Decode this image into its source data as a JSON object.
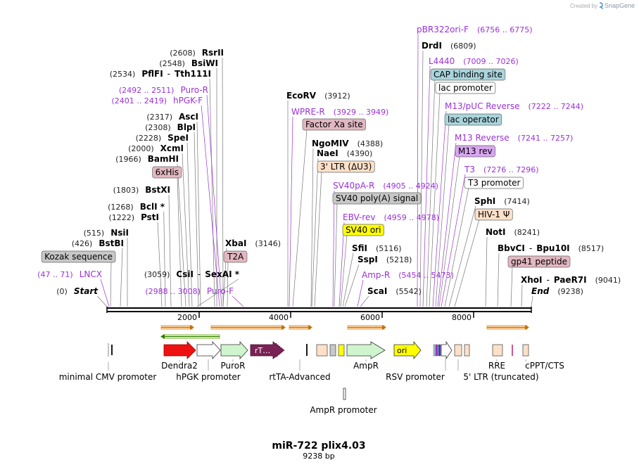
{
  "header": {
    "credit_prefix": "Created by",
    "credit_app": "SnapGene"
  },
  "colors": {
    "primer": "#9b30d9",
    "enzyme": "#000000",
    "pos": "#222222",
    "leader": "#777777",
    "gray_feature": "#c8c8c8",
    "pink_feature": "#e2b7c2",
    "peach_feature": "#fde0c8",
    "yellow_feature": "#ffff00",
    "blue_feature": "#a9d4dc",
    "white_feature": "#ffffff",
    "purple_feature": "#d9a6f0",
    "lavender_feature": "#d9c5ee"
  },
  "map": {
    "title": "miR-722 plix4.03",
    "length_label": "9238 bp",
    "ruler": [
      "2000",
      "4000",
      "6000",
      "8000"
    ]
  },
  "labels": [
    {
      "kind": "primer",
      "name": "pBR322ori-F",
      "pos": "(6756 .. 6775)"
    },
    {
      "kind": "enzyme",
      "name": "DrdI",
      "pos": "(6809)"
    },
    {
      "kind": "primer",
      "name": "L4440",
      "pos": "(7009 .. 7026)"
    },
    {
      "kind": "feature",
      "name": "CAP binding site",
      "color": "blue"
    },
    {
      "kind": "feature",
      "name": "lac promoter",
      "color": "white"
    },
    {
      "kind": "primer",
      "name": "M13/pUC Reverse",
      "pos": "(7222 .. 7244)"
    },
    {
      "kind": "feature",
      "name": "lac operator",
      "color": "blue"
    },
    {
      "kind": "primer",
      "name": "M13 Reverse",
      "pos": "(7241 .. 7257)"
    },
    {
      "kind": "feature",
      "name": "M13 rev",
      "color": "purple"
    },
    {
      "kind": "primer",
      "name": "T3",
      "pos": "(7276 .. 7296)"
    },
    {
      "kind": "feature",
      "name": "T3 promoter",
      "color": "white"
    },
    {
      "kind": "enzyme",
      "name": "SphI",
      "pos": "(7414)"
    },
    {
      "kind": "feature",
      "name": "HIV-1 Ψ",
      "color": "peach"
    },
    {
      "kind": "enzyme",
      "name": "NotI",
      "pos": "(8241)"
    },
    {
      "kind": "enzyme",
      "name": "BbvCI",
      "sep": "-",
      "name2": "Bpu10I",
      "pos": "(8517)"
    },
    {
      "kind": "feature",
      "name": "gp41 peptide",
      "color": "pink"
    },
    {
      "kind": "enzyme",
      "name": "XhoI",
      "sep": "-",
      "name2": "PaeR7I",
      "pos": "(9041)"
    },
    {
      "kind": "end",
      "name": "End",
      "pos": "(9238)"
    },
    {
      "kind": "enzyme",
      "name": "EcoRV",
      "pos": "(3912)"
    },
    {
      "kind": "primer",
      "name": "WPRE-R",
      "pos": "(3929 .. 3949)"
    },
    {
      "kind": "feature",
      "name": "Factor Xa site",
      "color": "pink"
    },
    {
      "kind": "enzyme",
      "name": "NgoMIV",
      "pos": "(4388)"
    },
    {
      "kind": "enzyme",
      "name": "NaeI",
      "pos": "(4390)"
    },
    {
      "kind": "feature",
      "name": "3' LTR (ΔU3)",
      "color": "peach"
    },
    {
      "kind": "primer",
      "name": "SV40pA-R",
      "pos": "(4905 .. 4924)"
    },
    {
      "kind": "feature",
      "name": "SV40 poly(A) signal",
      "color": "gray"
    },
    {
      "kind": "primer",
      "name": "EBV-rev",
      "pos": "(4959 .. 4978)"
    },
    {
      "kind": "feature",
      "name": "SV40 ori",
      "color": "yellow"
    },
    {
      "kind": "enzyme",
      "name": "SfiI",
      "pos": "(5116)"
    },
    {
      "kind": "enzyme",
      "name": "SspI",
      "pos": "(5218)"
    },
    {
      "kind": "primer",
      "name": "Amp-R",
      "pos": "(5454 .. 5473)"
    },
    {
      "kind": "enzyme",
      "name": "ScaI",
      "pos": "(5542)"
    },
    {
      "kind": "enzyme",
      "pos": "(2608)",
      "name": "RsrII"
    },
    {
      "kind": "enzyme",
      "pos": "(2548)",
      "name": "BsiWI"
    },
    {
      "kind": "enzyme",
      "pos": "(2534)",
      "name": "PflFI",
      "sep": "-",
      "name2": "Tth111I"
    },
    {
      "kind": "primer",
      "pos": "(2492 .. 2511)",
      "name": "Puro-R"
    },
    {
      "kind": "primer",
      "pos": "(2401 .. 2419)",
      "name": "hPGK-F"
    },
    {
      "kind": "enzyme",
      "pos": "(2317)",
      "name": "AscI"
    },
    {
      "kind": "enzyme",
      "pos": "(2308)",
      "name": "BlpI"
    },
    {
      "kind": "enzyme",
      "pos": "(2228)",
      "name": "SpeI"
    },
    {
      "kind": "enzyme",
      "pos": "(2000)",
      "name": "XcmI"
    },
    {
      "kind": "enzyme",
      "pos": "(1966)",
      "name": "BamHI"
    },
    {
      "kind": "feature",
      "name": "6xHis",
      "color": "pink"
    },
    {
      "kind": "enzyme",
      "pos": "(1803)",
      "name": "BstXI"
    },
    {
      "kind": "enzyme",
      "pos": "(1268)",
      "name": "BclI *"
    },
    {
      "kind": "enzyme",
      "pos": "(1222)",
      "name": "PstI"
    },
    {
      "kind": "enzyme",
      "pos": "(3146)",
      "name": "XbaI"
    },
    {
      "kind": "feature",
      "name": "T2A",
      "color": "pink"
    },
    {
      "kind": "enzyme",
      "pos": "(515)",
      "name": "NsiI"
    },
    {
      "kind": "enzyme",
      "pos": "(426)",
      "name": "BstBI"
    },
    {
      "kind": "feature",
      "name": "Kozak sequence",
      "color": "gray"
    },
    {
      "kind": "enzyme",
      "pos": "(3059)",
      "name": "CsiI",
      "sep": "-",
      "name2": "SexAI *"
    },
    {
      "kind": "primer",
      "pos": "(47 .. 71)",
      "name": "LNCX"
    },
    {
      "kind": "start",
      "pos": "(0)",
      "name": "Start"
    },
    {
      "kind": "primer",
      "pos": "(2988 .. 3008)",
      "name": "Puro-F"
    }
  ],
  "features": {
    "dendra2": "Dendra2",
    "hpgk": "hPGK promoter",
    "puror": "PuroR",
    "rtta_short": "rT…",
    "rtta": "rtTA-Advanced",
    "ampr": "AmpR",
    "ori": "ori",
    "rsv": "RSV promoter",
    "ltr5": "5' LTR (truncated)",
    "rre": "RRE",
    "cppt": "cPPT/CTS",
    "cmv": "minimal CMV promoter",
    "ampr_promoter": "AmpR promoter"
  }
}
